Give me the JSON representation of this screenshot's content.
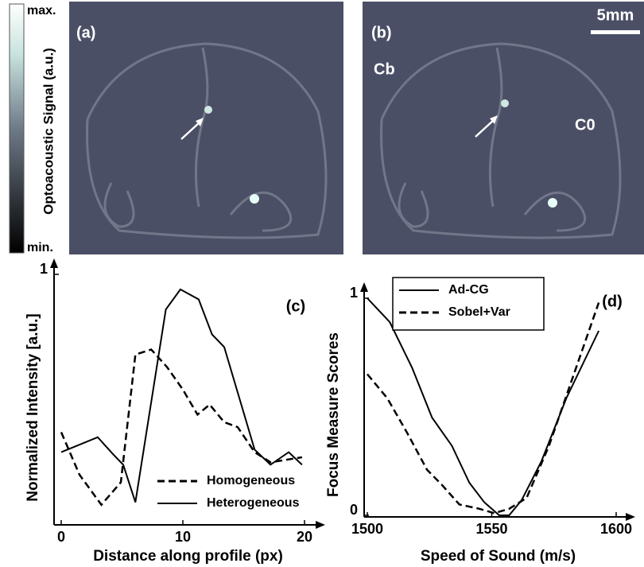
{
  "colorbar": {
    "label": "Optoacoustic Signal (a.u.)",
    "max": "max.",
    "min": "min."
  },
  "panels": [
    {
      "label": "(a)"
    },
    {
      "label": "(b)",
      "scale_bar": "5mm",
      "annotations": [
        "Cb",
        "C0"
      ]
    }
  ],
  "chart_data": [
    {
      "type": "line",
      "panel": "(c)",
      "xlabel": "Distance along profile (px)",
      "ylabel": "Normalized Intensity [a.u.]",
      "xlim": [
        0,
        20
      ],
      "xticks": [
        0,
        10,
        20
      ],
      "ylim": [
        0,
        1
      ],
      "yticks": [
        1
      ],
      "legend": "lower right",
      "series": [
        {
          "name": "Homogeneous",
          "color": "#000000",
          "style": "dashed",
          "x": [
            0,
            1.5,
            3.3,
            4.9,
            6.1,
            7.4,
            8.7,
            10,
            11.2,
            12.2,
            13.4,
            14.5,
            15.9,
            17.2,
            19.8
          ],
          "values": [
            0.37,
            0.2,
            0.08,
            0.17,
            0.68,
            0.7,
            0.63,
            0.54,
            0.44,
            0.48,
            0.41,
            0.39,
            0.29,
            0.25,
            0.27
          ]
        },
        {
          "name": "Heterogeneous",
          "color": "#000000",
          "style": "solid",
          "x": [
            0,
            3,
            4.3,
            5.1,
            6.1,
            7.4,
            8.6,
            9.8,
            11.3,
            12.4,
            13.4,
            15.9,
            17.2,
            18.7,
            19.8
          ],
          "values": [
            0.29,
            0.35,
            0.28,
            0.24,
            0.09,
            0.49,
            0.86,
            0.94,
            0.9,
            0.76,
            0.71,
            0.3,
            0.24,
            0.29,
            0.24
          ]
        }
      ]
    },
    {
      "type": "line",
      "panel": "(d)",
      "xlabel": "Speed of Sound (m/s)",
      "ylabel": "Focus Measure Scores",
      "xlim": [
        1500,
        1600
      ],
      "xticks": [
        1500,
        1550,
        1600
      ],
      "ylim": [
        0,
        1
      ],
      "yticks": [
        0,
        1
      ],
      "legend": "upper left",
      "series": [
        {
          "name": "Ad-CG",
          "color": "#000000",
          "style": "solid",
          "x": [
            1500,
            1509,
            1518,
            1526,
            1534,
            1541,
            1547,
            1553,
            1557,
            1562,
            1570,
            1580,
            1593
          ],
          "values": [
            1.0,
            0.89,
            0.68,
            0.45,
            0.32,
            0.15,
            0.06,
            0.0,
            0.0,
            0.07,
            0.25,
            0.54,
            0.85
          ]
        },
        {
          "name": "Sobel+Var",
          "color": "#000000",
          "style": "dashed",
          "x": [
            1500,
            1508,
            1516,
            1524,
            1530,
            1537,
            1545,
            1551,
            1557,
            1564,
            1573,
            1583,
            1593
          ],
          "values": [
            0.65,
            0.54,
            0.38,
            0.21,
            0.14,
            0.05,
            0.03,
            0.01,
            0.03,
            0.08,
            0.32,
            0.65,
            0.98
          ]
        }
      ]
    }
  ]
}
